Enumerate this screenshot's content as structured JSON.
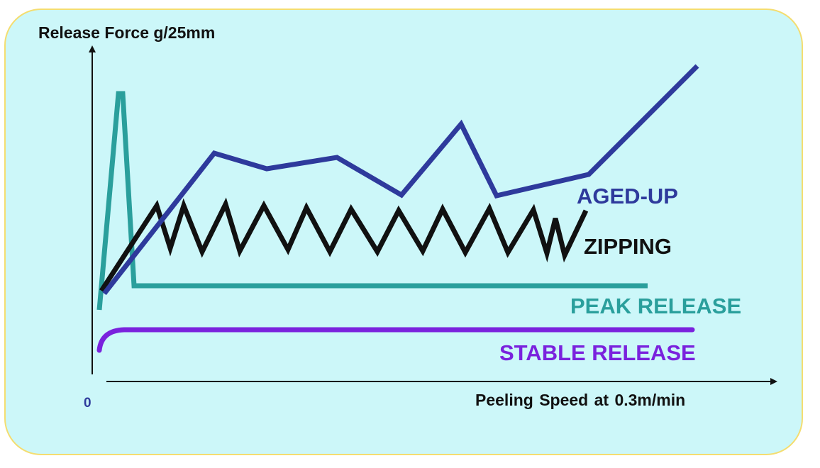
{
  "axes": {
    "y_title": "Release Force g/25mm",
    "x_title": "Peeling  Speed at 0.3m/min",
    "origin": "0"
  },
  "curves": [
    {
      "key": "aged",
      "label": "AGED-UP",
      "color": "#2e3a9c"
    },
    {
      "key": "zip",
      "label": "ZIPPING",
      "color": "#111111"
    },
    {
      "key": "peak",
      "label": "PEAK RELEASE",
      "color": "#2a9f9c"
    },
    {
      "key": "stable",
      "label": "STABLE RELEASE",
      "color": "#7a22dd"
    }
  ],
  "colors": {
    "background": "#ccf7f9",
    "border": "#f4dd70",
    "axis": "#111111"
  }
}
